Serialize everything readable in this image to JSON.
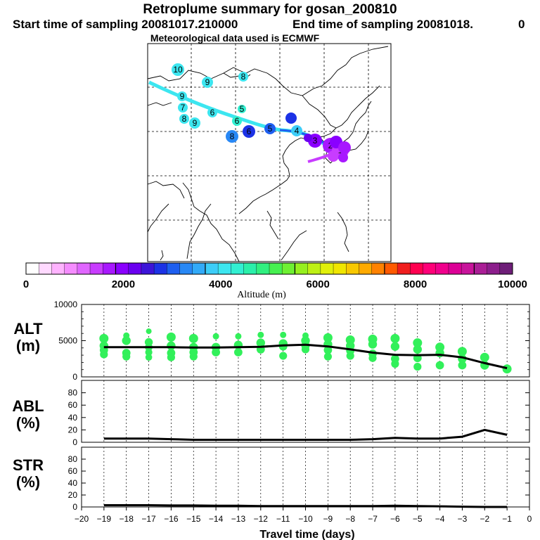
{
  "header": {
    "title": "Retroplume summary for gosan_200810",
    "start_label": "Start time of sampling 20081017.210000",
    "end_label": "End time of sampling 20081018.",
    "end_value": "0",
    "met_label": "Meteorological data used is ECMWF"
  },
  "colorbar": {
    "label": "Altitude (m)",
    "tick_labels": [
      "0",
      "2000",
      "4000",
      "6000",
      "8000",
      "10000"
    ],
    "colors": [
      "#ffffff",
      "#ffd9ff",
      "#ffb3ff",
      "#f58cff",
      "#e066ff",
      "#c83cff",
      "#a818ff",
      "#8a00ff",
      "#6a00f0",
      "#3c14d8",
      "#1c32e6",
      "#1e5ff0",
      "#2888f5",
      "#32aaf8",
      "#3ccdf8",
      "#3ce6f0",
      "#32f0d2",
      "#2af0aa",
      "#30f080",
      "#46f050",
      "#6ef032",
      "#96f01e",
      "#bef014",
      "#e1f00a",
      "#f0e600",
      "#f8c800",
      "#ffaa00",
      "#ff8200",
      "#ff5a00",
      "#f01e1e",
      "#ff0050",
      "#ff0078",
      "#f0008c",
      "#dc0096",
      "#c8149b",
      "#aa1e96",
      "#8c1e8c",
      "#6e1e78"
    ]
  },
  "chart_data": [
    {
      "type": "scatter",
      "name": "ALT",
      "ylabel_line1": "ALT",
      "ylabel_line2": "(m)",
      "ylim": [
        0,
        10000
      ],
      "yticks": [
        "10000",
        "5000",
        "0"
      ],
      "mean_line": {
        "x": [
          -19,
          -18,
          -17,
          -16,
          -15,
          -14,
          -13,
          -12,
          -11,
          -10,
          -9,
          -8,
          -7,
          -6,
          -5,
          -4,
          -3,
          -2,
          -1
        ],
        "y": [
          4100,
          4100,
          4100,
          4100,
          4050,
          4050,
          4100,
          4150,
          4350,
          4450,
          4200,
          3800,
          3350,
          3050,
          3000,
          3050,
          2700,
          1900,
          1200
        ]
      },
      "clusters": [
        {
          "x": -19,
          "values": [
            5300,
            4300,
            3700,
            3100
          ]
        },
        {
          "x": -18,
          "values": [
            5700,
            5000,
            3300,
            2800
          ]
        },
        {
          "x": -17,
          "values": [
            6300,
            4800,
            4100,
            3400,
            2700
          ]
        },
        {
          "x": -16,
          "values": [
            5500,
            4300,
            3300,
            2700
          ]
        },
        {
          "x": -15,
          "values": [
            5300,
            4100,
            3400,
            2800
          ]
        },
        {
          "x": -14,
          "values": [
            5600,
            4100,
            3400
          ]
        },
        {
          "x": -13,
          "values": [
            5600,
            4400,
            3400
          ]
        },
        {
          "x": -12,
          "values": [
            5800,
            4700,
            3800
          ]
        },
        {
          "x": -11,
          "values": [
            5800,
            4600,
            4200,
            2900
          ]
        },
        {
          "x": -10,
          "values": [
            5700,
            5000,
            4300,
            3800
          ]
        },
        {
          "x": -9,
          "values": [
            5400,
            4500,
            3700,
            2800
          ]
        },
        {
          "x": -8,
          "values": [
            5100,
            4300,
            3600,
            2900
          ]
        },
        {
          "x": -7,
          "values": [
            5200,
            4500,
            3200,
            2600
          ]
        },
        {
          "x": -6,
          "values": [
            5300,
            4200,
            2500,
            1800
          ]
        },
        {
          "x": -5,
          "values": [
            4700,
            3800,
            2600,
            1400
          ]
        },
        {
          "x": -4,
          "values": [
            4100,
            3300,
            1600
          ]
        },
        {
          "x": -3,
          "values": [
            3500,
            2500,
            1600
          ]
        },
        {
          "x": -2,
          "values": [
            2700,
            1600
          ]
        },
        {
          "x": -1,
          "values": [
            1100
          ]
        }
      ]
    },
    {
      "type": "line",
      "name": "ABL",
      "ylabel_line1": "ABL",
      "ylabel_line2": "(%)",
      "ylim": [
        0,
        100
      ],
      "yticks": [
        "80",
        "60",
        "40",
        "20",
        "0"
      ],
      "x": [
        -19,
        -18,
        -17,
        -16,
        -15,
        -14,
        -13,
        -12,
        -11,
        -10,
        -9,
        -8,
        -7,
        -6,
        -5,
        -4,
        -3,
        -2,
        -1
      ],
      "y": [
        6,
        6,
        6,
        5,
        4,
        4,
        4,
        4,
        4,
        4,
        4,
        4,
        5,
        7,
        6,
        6,
        9,
        20,
        12
      ]
    },
    {
      "type": "line",
      "name": "STR",
      "ylabel_line1": "STR",
      "ylabel_line2": "(%)",
      "ylim": [
        0,
        100
      ],
      "yticks": [
        "80",
        "60",
        "40",
        "20",
        "0"
      ],
      "x": [
        -19,
        -18,
        -17,
        -16,
        -15,
        -14,
        -13,
        -12,
        -11,
        -10,
        -9,
        -8,
        -7,
        -6,
        -5,
        -4,
        -3,
        -2,
        -1
      ],
      "y": [
        3,
        3,
        3,
        2.5,
        2.5,
        2,
        2,
        1.5,
        1.5,
        1.5,
        1.5,
        1.5,
        1.5,
        2,
        1.5,
        1,
        0.5,
        0,
        0
      ]
    }
  ],
  "xaxis": {
    "label": "Travel time (days)",
    "range": [
      -20,
      0
    ],
    "tick_labels": [
      "-20",
      "-19",
      "-18",
      "-17",
      "-16",
      "-15",
      "-14",
      "-13",
      "-12",
      "-11",
      "-10",
      "-9",
      "-8",
      "-7",
      "-6",
      "-5",
      "-4",
      "-3",
      "-2",
      "-1",
      "0"
    ]
  },
  "map": {
    "markers": [
      {
        "label": "10",
        "color": "#3ce6f0"
      },
      {
        "label": "9",
        "color": "#3ce6f0"
      },
      {
        "label": "8",
        "color": "#3ce6f0"
      },
      {
        "label": "9",
        "color": "#3ce6f0"
      },
      {
        "label": "7",
        "color": "#3ce6f0"
      },
      {
        "label": "6",
        "color": "#3ce6f0"
      },
      {
        "label": "8",
        "color": "#3ce6f0"
      },
      {
        "label": "9",
        "color": "#3ce6f0"
      },
      {
        "label": "5",
        "color": "#32f0d2"
      },
      {
        "label": "6",
        "color": "#32f0d2"
      },
      {
        "label": "8",
        "color": "#2888f5"
      },
      {
        "label": "6",
        "color": "#1c32e6"
      },
      {
        "label": "5",
        "color": "#1e5ff0"
      },
      {
        "label": "4",
        "color": "#3ccdf8"
      },
      {
        "label": "3",
        "color": "#8a00ff"
      },
      {
        "label": "2",
        "color": "#a818ff"
      },
      {
        "label": "1",
        "color": "#c83cff"
      }
    ]
  }
}
